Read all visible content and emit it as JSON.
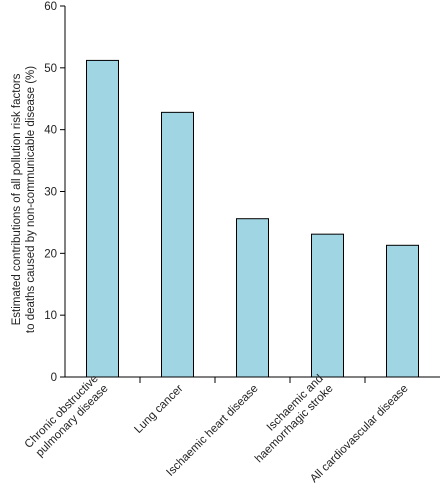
{
  "chart_data": {
    "type": "bar",
    "title": "",
    "ylabel_lines": [
      "Estimated contributions of all pollution risk factors",
      "to deaths caused by non-communicable disease (%)"
    ],
    "xlabel": "",
    "ylim": [
      0,
      60
    ],
    "yticks": [
      0,
      10,
      20,
      30,
      40,
      50,
      60
    ],
    "grid": false,
    "legend": "none",
    "bar_color": "#a0d5e3",
    "categories": [
      "Chronic obstructive pulmonary disease",
      "Lung cancer",
      "Ischaemic heart disease",
      "Ischaemic and haemorrhagic stroke",
      "All cardiovascular disease"
    ],
    "category_lines": [
      [
        "Chronic obstructive",
        "pulmonary disease"
      ],
      [
        "Lung cancer"
      ],
      [
        "Ischaemic heart disease"
      ],
      [
        "Ischaemic and",
        "haemorrhagic stroke"
      ],
      [
        "All cardiovascular disease"
      ]
    ],
    "values": [
      51.2,
      42.8,
      25.6,
      23.1,
      21.3
    ]
  }
}
